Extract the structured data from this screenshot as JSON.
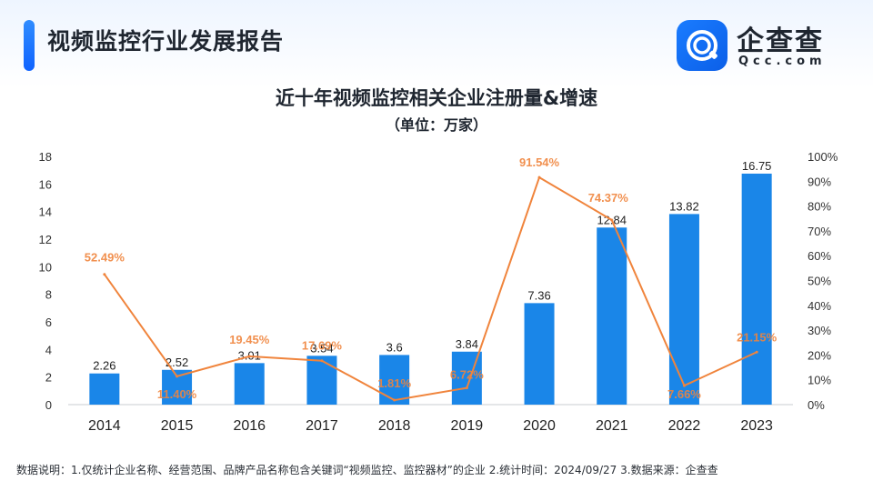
{
  "header": {
    "report_title": "视频监控行业发展报告",
    "logo_name": "企查查",
    "logo_domain": "Qcc.com",
    "logo_icon": "qcc-logo-icon",
    "accent_color": "#1a7cff"
  },
  "chart_data": {
    "type": "bar",
    "title": "近十年视频监控相关企业注册量&增速",
    "subtitle": "（单位：万家）",
    "categories": [
      "2014",
      "2015",
      "2016",
      "2017",
      "2018",
      "2019",
      "2020",
      "2021",
      "2022",
      "2023"
    ],
    "series": [
      {
        "type": "bar",
        "values": [
          2.26,
          2.52,
          3.01,
          3.54,
          3.6,
          3.84,
          7.36,
          12.84,
          13.82,
          16.75
        ],
        "labels": [
          "2.26",
          "2.52",
          "3.01",
          "3.54",
          "3.6",
          "3.84",
          "7.36",
          "12.84",
          "13.82",
          "16.75"
        ],
        "color": "#1a86e8",
        "axis": "left"
      },
      {
        "type": "line",
        "values": [
          52.49,
          11.4,
          19.45,
          17.69,
          1.81,
          6.72,
          91.54,
          74.37,
          7.66,
          21.15
        ],
        "labels": [
          "52.49%",
          "11.40%",
          "19.45%",
          "17.69%",
          "1.81%",
          "6.72%",
          "91.54%",
          "74.37%",
          "7.66%",
          "21.15%"
        ],
        "color": "#f0843c",
        "axis": "right"
      }
    ],
    "left_axis": {
      "ylim": [
        0,
        18
      ],
      "ticks": [
        "0",
        "2",
        "4",
        "6",
        "8",
        "10",
        "12",
        "14",
        "16",
        "18"
      ]
    },
    "right_axis": {
      "ylim": [
        0,
        100
      ],
      "ticks": [
        "0%",
        "10%",
        "20%",
        "30%",
        "40%",
        "50%",
        "60%",
        "70%",
        "80%",
        "90%",
        "100%"
      ]
    },
    "grid": false
  },
  "footnote": "数据说明：1.仅统计企业名称、经营范围、品牌产品名称包含关键词“视频监控、监控器材”的企业    2.统计时间：2024/09/27    3.数据来源：企查查"
}
